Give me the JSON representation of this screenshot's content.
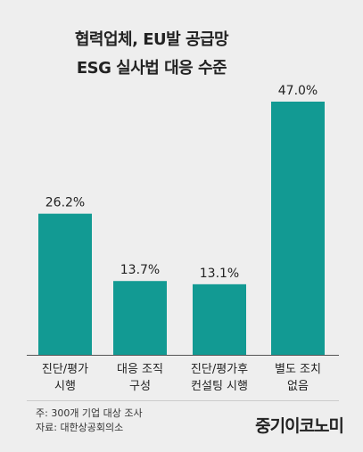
{
  "header": {
    "title_line1": "협력업체, EU발 공급망",
    "title_line2": "ESG 실사법 대응 수준"
  },
  "chart_data": {
    "type": "bar",
    "categories": [
      [
        "진단/평가",
        "시행"
      ],
      [
        "대응 조직",
        "구성"
      ],
      [
        "진단/평가후",
        "컨설팅 시행"
      ],
      [
        "별도 조치",
        "없음"
      ]
    ],
    "values": [
      26.2,
      13.7,
      13.1,
      47.0
    ],
    "value_labels": [
      "26.2%",
      "13.7%",
      "13.1%",
      "47.0%"
    ],
    "ylim": [
      0,
      47.0
    ],
    "grid": false,
    "bar_color": "#129a93"
  },
  "footer": {
    "note": "주: 300개 기업 대상 조사",
    "source": "자료: 대한상공회의소",
    "brand": "중기이코노미"
  }
}
